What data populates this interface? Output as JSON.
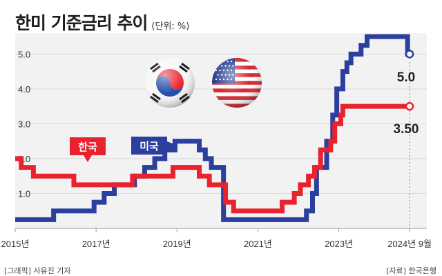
{
  "header": {
    "title": "한미 기준금리 추이",
    "unit": "(단위: %)"
  },
  "footer": {
    "credit": "[그래픽] 사유진 기자",
    "source": "[자료] 한국은행"
  },
  "colors": {
    "korea": "#e8232e",
    "us": "#2b3f9e",
    "grid": "#d9d9d9",
    "panel": "#f2f2f2"
  },
  "icons": {
    "korea_flag": "korea-flag-icon",
    "us_flag": "us-flag-icon"
  },
  "chart_data": {
    "type": "line",
    "step": true,
    "x_ticks": [
      "2015년",
      "2017년",
      "2019년",
      "2021년",
      "2023년",
      "2024년 9월"
    ],
    "y_ticks": [
      "5.0",
      "4.0",
      "3.0",
      "2.0",
      "1.0"
    ],
    "ylim": [
      0,
      5.6
    ],
    "xlim": [
      2015.0,
      2024.8
    ],
    "grid": true,
    "series": [
      {
        "name": "한국",
        "color": "#e8232e",
        "end_label": "3.50",
        "points": [
          [
            2015.0,
            2.0
          ],
          [
            2015.15,
            1.75
          ],
          [
            2015.45,
            1.5
          ],
          [
            2016.45,
            1.25
          ],
          [
            2017.9,
            1.5
          ],
          [
            2018.9,
            1.75
          ],
          [
            2019.55,
            1.5
          ],
          [
            2019.8,
            1.25
          ],
          [
            2020.2,
            0.75
          ],
          [
            2020.4,
            0.5
          ],
          [
            2021.6,
            0.75
          ],
          [
            2021.9,
            1.0
          ],
          [
            2022.05,
            1.25
          ],
          [
            2022.25,
            1.5
          ],
          [
            2022.4,
            1.75
          ],
          [
            2022.55,
            2.25
          ],
          [
            2022.8,
            2.5
          ],
          [
            2022.9,
            3.0
          ],
          [
            2023.05,
            3.25
          ],
          [
            2023.1,
            3.5
          ],
          [
            2024.75,
            3.5
          ]
        ]
      },
      {
        "name": "미국",
        "color": "#2b3f9e",
        "end_label": "5.0",
        "points": [
          [
            2015.0,
            0.25
          ],
          [
            2015.95,
            0.5
          ],
          [
            2016.95,
            0.75
          ],
          [
            2017.2,
            1.0
          ],
          [
            2017.45,
            1.25
          ],
          [
            2017.95,
            1.5
          ],
          [
            2018.2,
            1.75
          ],
          [
            2018.45,
            2.0
          ],
          [
            2018.7,
            2.25
          ],
          [
            2018.95,
            2.5
          ],
          [
            2019.55,
            2.25
          ],
          [
            2019.7,
            2.0
          ],
          [
            2019.85,
            1.75
          ],
          [
            2020.15,
            0.25
          ],
          [
            2022.2,
            0.5
          ],
          [
            2022.35,
            1.0
          ],
          [
            2022.45,
            1.75
          ],
          [
            2022.7,
            2.5
          ],
          [
            2022.85,
            3.25
          ],
          [
            2022.95,
            4.0
          ],
          [
            2023.1,
            4.5
          ],
          [
            2023.2,
            4.75
          ],
          [
            2023.3,
            5.0
          ],
          [
            2023.55,
            5.25
          ],
          [
            2023.7,
            5.5
          ],
          [
            2024.7,
            5.0
          ],
          [
            2024.75,
            5.0
          ]
        ]
      }
    ]
  }
}
